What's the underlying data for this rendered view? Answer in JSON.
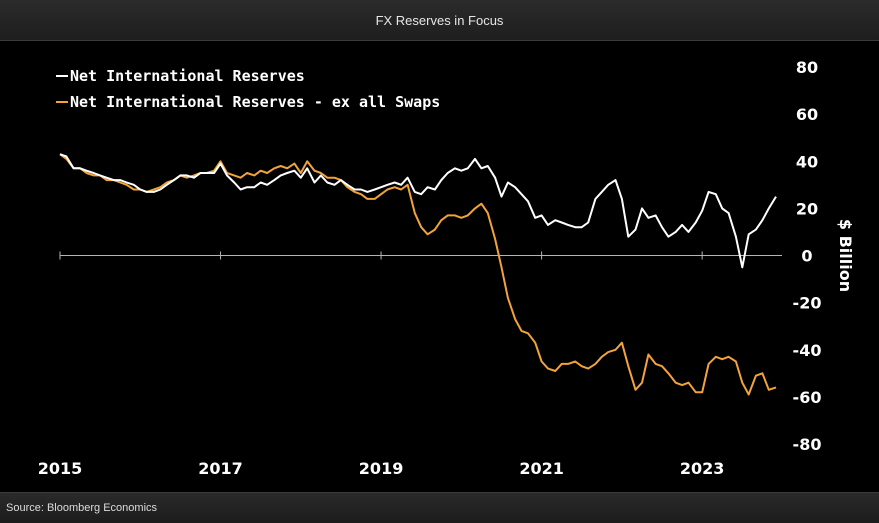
{
  "header": {
    "title": "FX Reserves in Focus"
  },
  "footer": {
    "source": "Source: Bloomberg Economics"
  },
  "colors": {
    "white_series": "#ffffff",
    "orange_series": "#f2a33a",
    "background": "#000000"
  },
  "chart_data": {
    "type": "line",
    "title": "",
    "xlabel": "",
    "ylabel": "$ Billion",
    "xlim": [
      2015.0,
      2023.75
    ],
    "ylim": [
      -80,
      80
    ],
    "x_ticks": [
      "2015",
      "2017",
      "2019",
      "2021",
      "2023"
    ],
    "y_ticks": [
      80,
      60,
      40,
      20,
      0,
      -20,
      -40,
      -60,
      -80
    ],
    "grid": false,
    "legend_position": "top-left",
    "series": [
      {
        "name": "Net International Reserves",
        "color": "#ffffff",
        "points": [
          [
            2015.0,
            43
          ],
          [
            2015.08,
            42
          ],
          [
            2015.17,
            37
          ],
          [
            2015.25,
            37
          ],
          [
            2015.33,
            36
          ],
          [
            2015.42,
            35
          ],
          [
            2015.5,
            34
          ],
          [
            2015.58,
            33
          ],
          [
            2015.67,
            32
          ],
          [
            2015.75,
            32
          ],
          [
            2015.83,
            31
          ],
          [
            2015.92,
            30
          ],
          [
            2016.0,
            28
          ],
          [
            2016.08,
            27
          ],
          [
            2016.17,
            27
          ],
          [
            2016.25,
            28
          ],
          [
            2016.33,
            30
          ],
          [
            2016.42,
            32
          ],
          [
            2016.5,
            34
          ],
          [
            2016.58,
            34
          ],
          [
            2016.67,
            33
          ],
          [
            2016.75,
            35
          ],
          [
            2016.83,
            35
          ],
          [
            2016.92,
            35
          ],
          [
            2017.0,
            39
          ],
          [
            2017.08,
            34
          ],
          [
            2017.17,
            31
          ],
          [
            2017.25,
            28
          ],
          [
            2017.33,
            29
          ],
          [
            2017.42,
            29
          ],
          [
            2017.5,
            31
          ],
          [
            2017.58,
            30
          ],
          [
            2017.67,
            32
          ],
          [
            2017.75,
            34
          ],
          [
            2017.83,
            35
          ],
          [
            2017.92,
            36
          ],
          [
            2018.0,
            33
          ],
          [
            2018.08,
            37
          ],
          [
            2018.17,
            31
          ],
          [
            2018.25,
            34
          ],
          [
            2018.33,
            31
          ],
          [
            2018.42,
            30
          ],
          [
            2018.5,
            32
          ],
          [
            2018.58,
            30
          ],
          [
            2018.67,
            28
          ],
          [
            2018.75,
            28
          ],
          [
            2018.83,
            27
          ],
          [
            2018.92,
            28
          ],
          [
            2019.0,
            29
          ],
          [
            2019.08,
            30
          ],
          [
            2019.17,
            31
          ],
          [
            2019.25,
            30
          ],
          [
            2019.33,
            33
          ],
          [
            2019.42,
            27
          ],
          [
            2019.5,
            26
          ],
          [
            2019.58,
            29
          ],
          [
            2019.67,
            28
          ],
          [
            2019.75,
            32
          ],
          [
            2019.83,
            35
          ],
          [
            2019.92,
            37
          ],
          [
            2020.0,
            36
          ],
          [
            2020.08,
            37
          ],
          [
            2020.17,
            41
          ],
          [
            2020.25,
            37
          ],
          [
            2020.33,
            38
          ],
          [
            2020.42,
            33
          ],
          [
            2020.5,
            25
          ],
          [
            2020.58,
            31
          ],
          [
            2020.67,
            29
          ],
          [
            2020.75,
            26
          ],
          [
            2020.83,
            23
          ],
          [
            2020.92,
            16
          ],
          [
            2021.0,
            17
          ],
          [
            2021.08,
            13
          ],
          [
            2021.17,
            15
          ],
          [
            2021.25,
            14
          ],
          [
            2021.33,
            13
          ],
          [
            2021.42,
            12
          ],
          [
            2021.5,
            12
          ],
          [
            2021.58,
            14
          ],
          [
            2021.67,
            24
          ],
          [
            2021.75,
            27
          ],
          [
            2021.83,
            30
          ],
          [
            2021.92,
            32
          ],
          [
            2022.0,
            24
          ],
          [
            2022.08,
            8
          ],
          [
            2022.17,
            11
          ],
          [
            2022.25,
            20
          ],
          [
            2022.33,
            16
          ],
          [
            2022.42,
            17
          ],
          [
            2022.5,
            12
          ],
          [
            2022.58,
            8
          ],
          [
            2022.67,
            10
          ],
          [
            2022.75,
            13
          ],
          [
            2022.83,
            10
          ],
          [
            2022.92,
            14
          ],
          [
            2023.0,
            19
          ],
          [
            2023.08,
            27
          ],
          [
            2023.17,
            26
          ],
          [
            2023.25,
            20
          ],
          [
            2023.33,
            18
          ],
          [
            2023.42,
            8
          ],
          [
            2023.5,
            -5
          ],
          [
            2023.58,
            9
          ],
          [
            2023.67,
            11
          ],
          [
            2023.75,
            15
          ],
          [
            2023.83,
            20
          ],
          [
            2023.92,
            25
          ]
        ]
      },
      {
        "name": "Net International Reserves - ex all Swaps",
        "color": "#f2a33a",
        "points": [
          [
            2015.0,
            43
          ],
          [
            2015.08,
            41
          ],
          [
            2015.17,
            37
          ],
          [
            2015.25,
            37
          ],
          [
            2015.33,
            35
          ],
          [
            2015.42,
            34
          ],
          [
            2015.5,
            34
          ],
          [
            2015.58,
            32
          ],
          [
            2015.67,
            32
          ],
          [
            2015.75,
            31
          ],
          [
            2015.83,
            30
          ],
          [
            2015.92,
            28
          ],
          [
            2016.0,
            28
          ],
          [
            2016.08,
            27
          ],
          [
            2016.17,
            28
          ],
          [
            2016.25,
            29
          ],
          [
            2016.33,
            31
          ],
          [
            2016.42,
            32
          ],
          [
            2016.5,
            34
          ],
          [
            2016.58,
            33
          ],
          [
            2016.67,
            34
          ],
          [
            2016.75,
            35
          ],
          [
            2016.83,
            35
          ],
          [
            2016.92,
            36
          ],
          [
            2017.0,
            40
          ],
          [
            2017.08,
            35
          ],
          [
            2017.17,
            34
          ],
          [
            2017.25,
            33
          ],
          [
            2017.33,
            35
          ],
          [
            2017.42,
            34
          ],
          [
            2017.5,
            36
          ],
          [
            2017.58,
            35
          ],
          [
            2017.67,
            37
          ],
          [
            2017.75,
            38
          ],
          [
            2017.83,
            37
          ],
          [
            2017.92,
            39
          ],
          [
            2018.0,
            35
          ],
          [
            2018.08,
            40
          ],
          [
            2018.17,
            36
          ],
          [
            2018.25,
            35
          ],
          [
            2018.33,
            33
          ],
          [
            2018.42,
            33
          ],
          [
            2018.5,
            32
          ],
          [
            2018.58,
            29
          ],
          [
            2018.67,
            27
          ],
          [
            2018.75,
            26
          ],
          [
            2018.83,
            24
          ],
          [
            2018.92,
            24
          ],
          [
            2019.0,
            26
          ],
          [
            2019.08,
            28
          ],
          [
            2019.17,
            29
          ],
          [
            2019.25,
            28
          ],
          [
            2019.33,
            30
          ],
          [
            2019.42,
            18
          ],
          [
            2019.5,
            12
          ],
          [
            2019.58,
            9
          ],
          [
            2019.67,
            11
          ],
          [
            2019.75,
            15
          ],
          [
            2019.83,
            17
          ],
          [
            2019.92,
            17
          ],
          [
            2020.0,
            16
          ],
          [
            2020.08,
            17
          ],
          [
            2020.17,
            20
          ],
          [
            2020.25,
            22
          ],
          [
            2020.33,
            18
          ],
          [
            2020.42,
            7
          ],
          [
            2020.5,
            -5
          ],
          [
            2020.58,
            -18
          ],
          [
            2020.67,
            -27
          ],
          [
            2020.75,
            -32
          ],
          [
            2020.83,
            -33
          ],
          [
            2020.92,
            -37
          ],
          [
            2021.0,
            -45
          ],
          [
            2021.08,
            -48
          ],
          [
            2021.17,
            -49
          ],
          [
            2021.25,
            -46
          ],
          [
            2021.33,
            -46
          ],
          [
            2021.42,
            -45
          ],
          [
            2021.5,
            -47
          ],
          [
            2021.58,
            -48
          ],
          [
            2021.67,
            -46
          ],
          [
            2021.75,
            -43
          ],
          [
            2021.83,
            -41
          ],
          [
            2021.92,
            -40
          ],
          [
            2022.0,
            -37
          ],
          [
            2022.08,
            -47
          ],
          [
            2022.17,
            -57
          ],
          [
            2022.25,
            -54
          ],
          [
            2022.33,
            -42
          ],
          [
            2022.42,
            -46
          ],
          [
            2022.5,
            -47
          ],
          [
            2022.58,
            -50
          ],
          [
            2022.67,
            -54
          ],
          [
            2022.75,
            -55
          ],
          [
            2022.83,
            -54
          ],
          [
            2022.92,
            -58
          ],
          [
            2023.0,
            -58
          ],
          [
            2023.08,
            -46
          ],
          [
            2023.17,
            -43
          ],
          [
            2023.25,
            -44
          ],
          [
            2023.33,
            -43
          ],
          [
            2023.42,
            -45
          ],
          [
            2023.5,
            -54
          ],
          [
            2023.58,
            -59
          ],
          [
            2023.67,
            -51
          ],
          [
            2023.75,
            -50
          ],
          [
            2023.83,
            -57
          ],
          [
            2023.92,
            -56
          ]
        ]
      }
    ]
  }
}
